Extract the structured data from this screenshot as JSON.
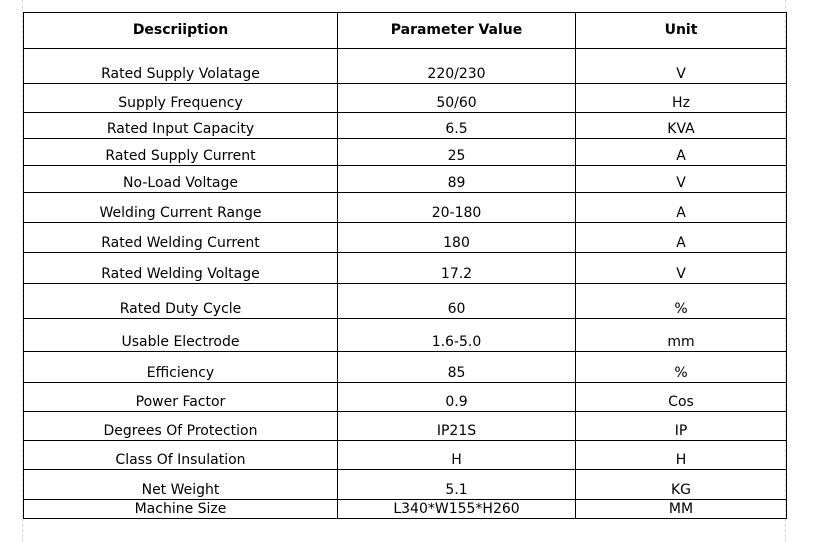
{
  "table": {
    "headers": [
      "Descriiption",
      "Parameter Value",
      "Unit"
    ],
    "rows": [
      [
        "Rated Supply Volatage",
        "220/230",
        "V"
      ],
      [
        "Supply Frequency",
        "50/60",
        "Hz"
      ],
      [
        "Rated Input Capacity",
        "6.5",
        "KVA"
      ],
      [
        "Rated Supply Current",
        "25",
        "A"
      ],
      [
        "No-Load Voltage",
        "89",
        "V"
      ],
      [
        "Welding Current Range",
        "20-180",
        "A"
      ],
      [
        "Rated Welding Current",
        "180",
        "A"
      ],
      [
        "Rated Welding Voltage",
        "17.2",
        "V"
      ],
      [
        "Rated Duty Cycle",
        "60",
        "%"
      ],
      [
        "Usable Electrode",
        "1.6-5.0",
        "mm"
      ],
      [
        "Efficiency",
        "85",
        "%"
      ],
      [
        "Power Factor",
        "0.9",
        "Cos"
      ],
      [
        "Degrees Of Protection",
        "IP21S",
        "IP"
      ],
      [
        "Class Of Insulation",
        "H",
        "H"
      ],
      [
        "Net Weight",
        "5.1",
        "KG"
      ],
      [
        "Machine Size",
        "L340*W155*H260",
        "MM"
      ]
    ]
  }
}
